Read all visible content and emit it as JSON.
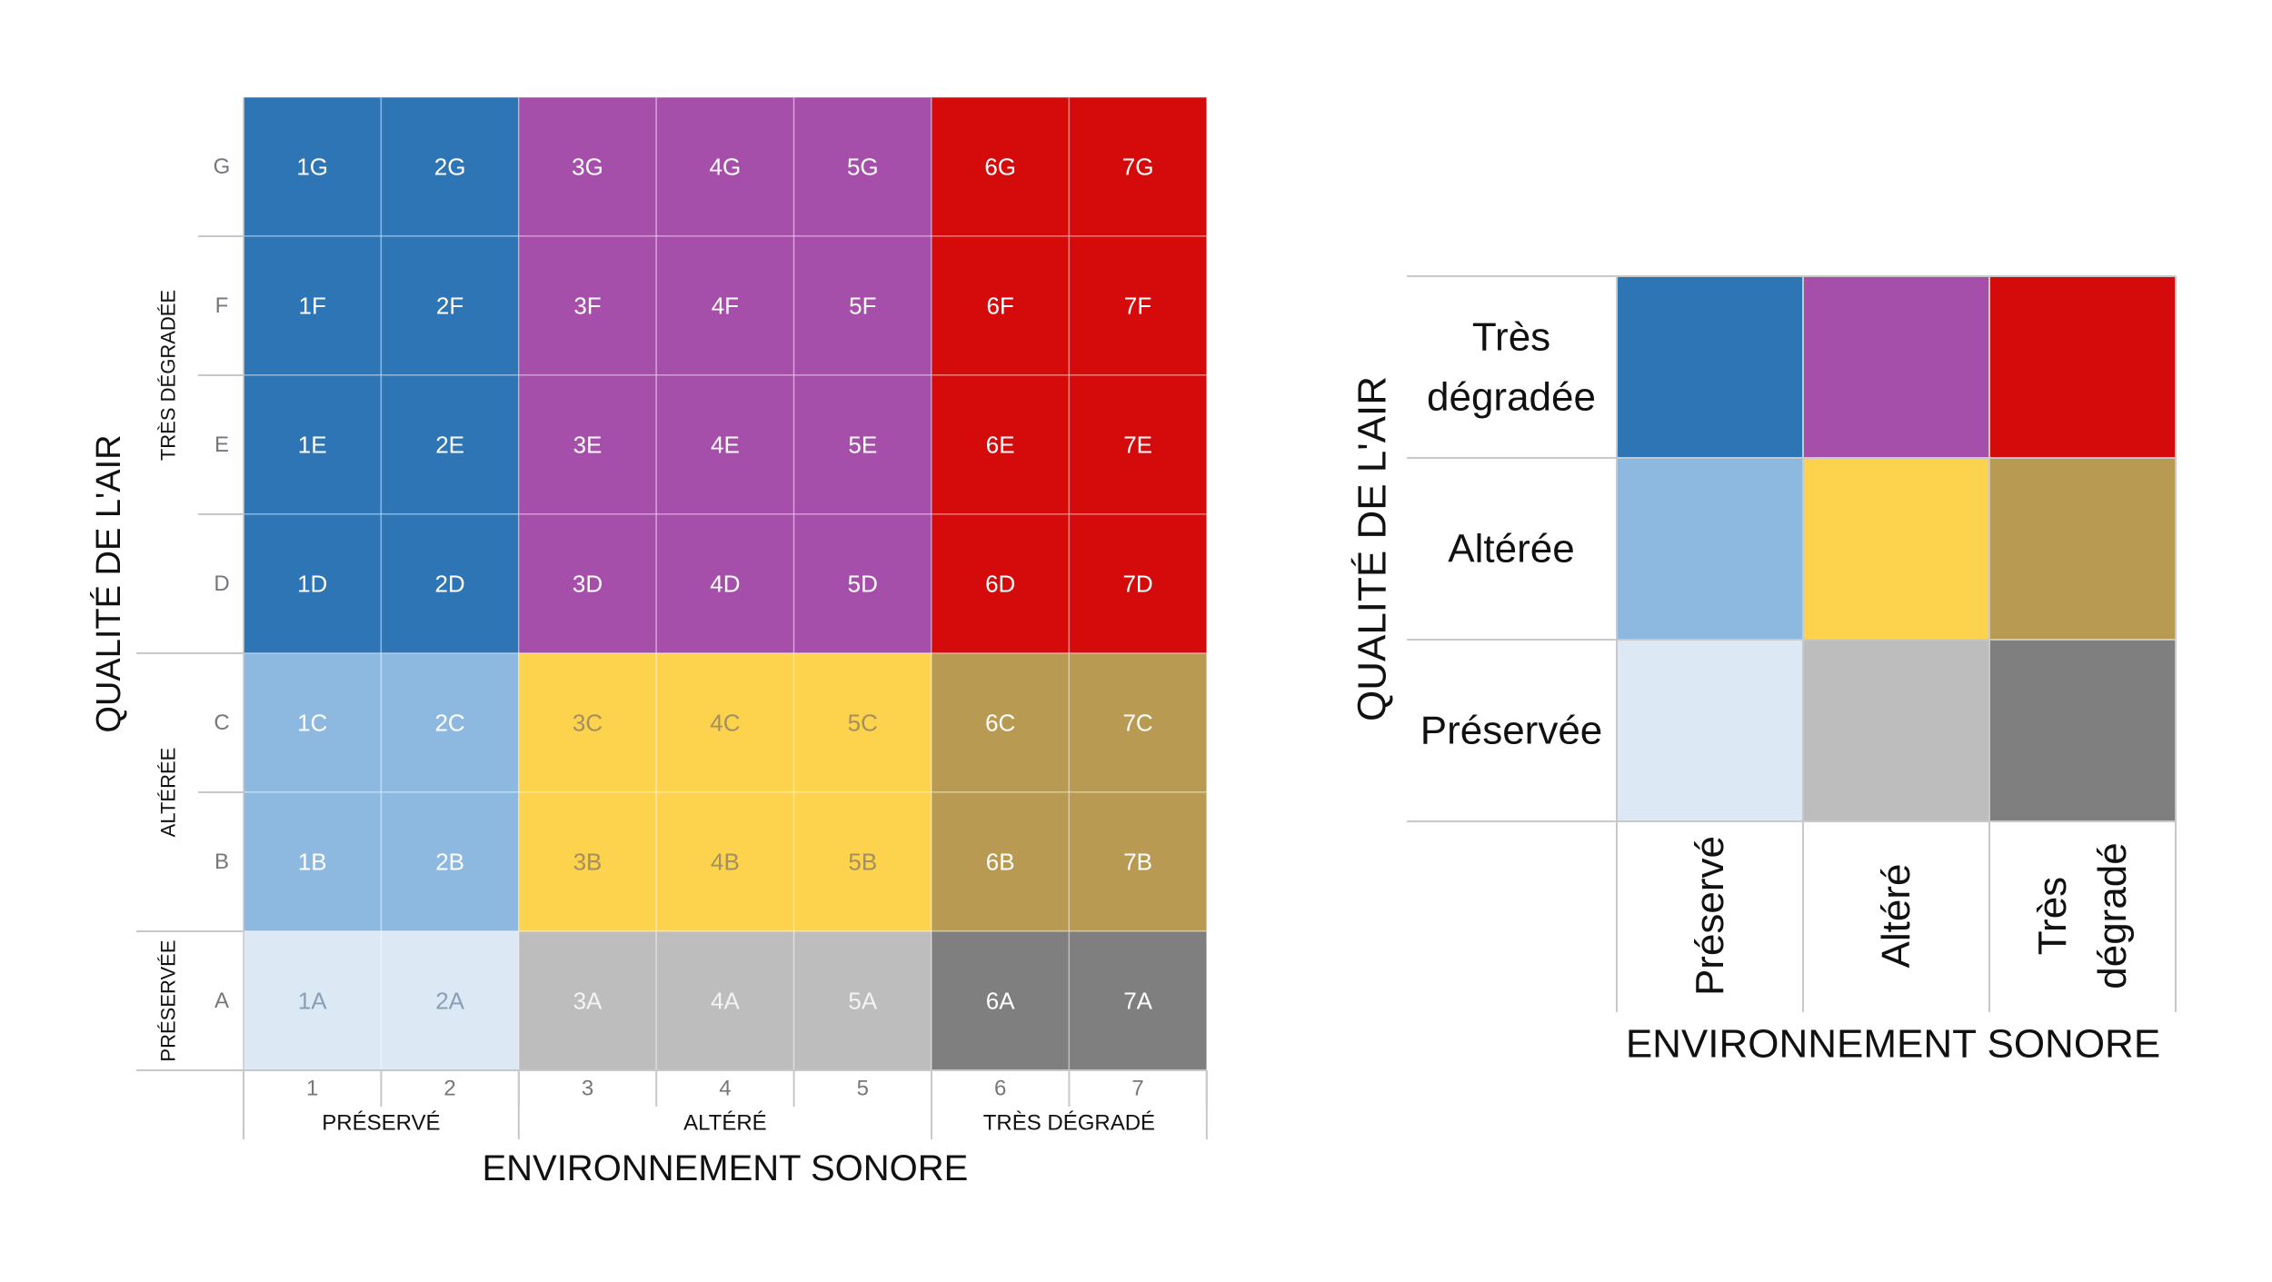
{
  "colors": {
    "blue_dark": "#2e75b6",
    "purple": "#a64faa",
    "red": "#d50a0b",
    "blue_light": "#8db8e0",
    "yellow": "#fdd24c",
    "gold": "#b99a52",
    "blue_pale": "#dce8f4",
    "grey_light": "#bdbdbd",
    "grey_dark": "#7f7f7f",
    "line": "#c8c8c8",
    "text_dark": "#111111",
    "text_muted": "#777777"
  },
  "left_matrix": {
    "x_title": "ENVIRONNEMENT SONORE",
    "y_title": "QUALITÉ DE L'AIR",
    "columns": [
      "1",
      "2",
      "3",
      "4",
      "5",
      "6",
      "7"
    ],
    "rows_top_to_bottom": [
      "G",
      "F",
      "E",
      "D",
      "C",
      "B",
      "A"
    ],
    "column_groups": [
      {
        "label": "PRÉSERVÉ",
        "span": 2
      },
      {
        "label": "ALTÉRÉ",
        "span": 3
      },
      {
        "label": "TRÈS DÉGRADÉ",
        "span": 2
      }
    ],
    "row_groups_top_to_bottom": [
      {
        "label": "TRÈS DÉGRADÉE",
        "span": 4
      },
      {
        "label": "ALTÉRÉE",
        "span": 2
      },
      {
        "label": "PRÉSERVÉE",
        "span": 1
      }
    ]
  },
  "right_legend": {
    "x_title": "ENVIRONNEMENT SONORE",
    "y_title": "QUALITÉ DE L'AIR",
    "row_labels_top_to_bottom": [
      [
        "Très",
        "dégradée"
      ],
      [
        "Altérée"
      ],
      [
        "Préservée"
      ]
    ],
    "col_labels": [
      [
        "Préservé"
      ],
      [
        "Altéré"
      ],
      [
        "Très",
        "dégradé"
      ]
    ],
    "grid_top_to_bottom": [
      [
        "blue_dark",
        "purple",
        "red"
      ],
      [
        "blue_light",
        "yellow",
        "gold"
      ],
      [
        "blue_pale",
        "grey_light",
        "grey_dark"
      ]
    ]
  }
}
